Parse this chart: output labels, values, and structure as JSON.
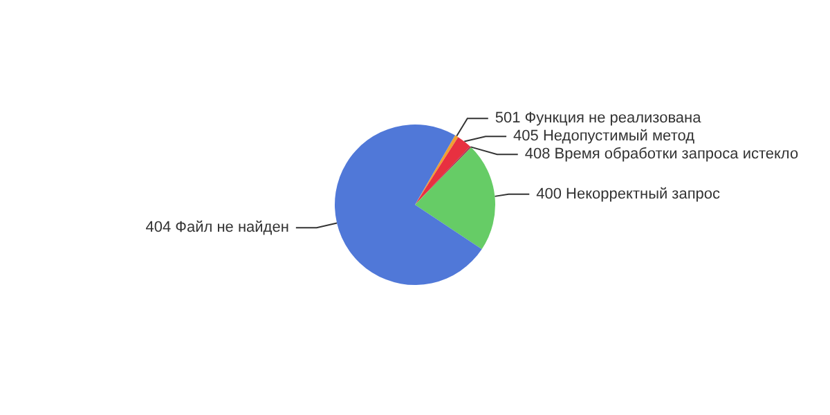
{
  "chart_data": {
    "type": "pie",
    "categories": [
      "501 Функция не реализована",
      "405 Недопустимый метод",
      "408 Время обработки запроса истекло",
      "400 Некорректный запрос",
      "404 Файл не найден"
    ],
    "values": [
      0.7,
      3,
      0.3,
      22,
      74
    ],
    "colors": [
      "#f0a030",
      "#e83040",
      "#b03050",
      "#66cc66",
      "#5078d8"
    ]
  }
}
